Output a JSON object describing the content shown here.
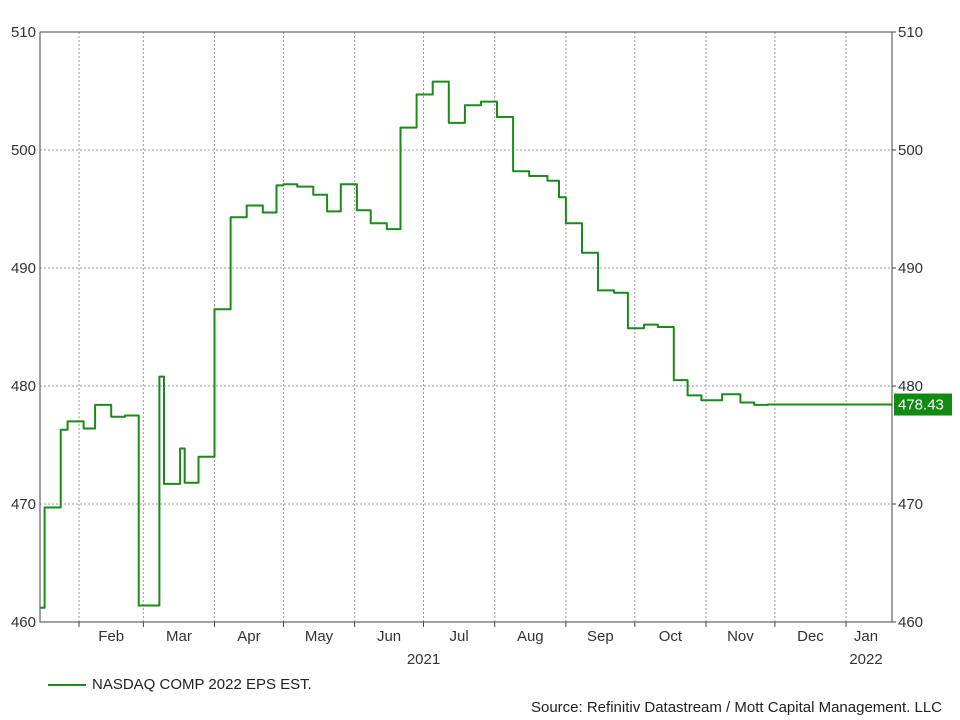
{
  "chart_data": {
    "type": "line",
    "title": "",
    "xlabel": "",
    "ylabel": "",
    "ylim": [
      460,
      510
    ],
    "y_ticks": [
      "460",
      "470",
      "480",
      "490",
      "500",
      "510"
    ],
    "x_ticks": [
      "Feb",
      "Mar",
      "Apr",
      "May",
      "Jun",
      "Jul",
      "Aug",
      "Sep",
      "Oct",
      "Nov",
      "Dec",
      "Jan"
    ],
    "year_labels": [
      "2021",
      "2022"
    ],
    "grid": true,
    "line_step": "post",
    "series": [
      {
        "name": "NASDAQ COMP 2022 EPS EST.",
        "color": "#1a8a1a",
        "last_value": "478.43",
        "x": [
          "2021-01-15",
          "2021-01-17",
          "2021-01-24",
          "2021-01-27",
          "2021-02-03",
          "2021-02-08",
          "2021-02-15",
          "2021-02-21",
          "2021-02-27",
          "2021-03-08",
          "2021-03-10",
          "2021-03-17",
          "2021-03-19",
          "2021-03-25",
          "2021-04-01",
          "2021-04-08",
          "2021-04-15",
          "2021-04-22",
          "2021-04-28",
          "2021-05-01",
          "2021-05-07",
          "2021-05-14",
          "2021-05-20",
          "2021-05-26",
          "2021-06-02",
          "2021-06-08",
          "2021-06-15",
          "2021-06-21",
          "2021-06-28",
          "2021-07-05",
          "2021-07-12",
          "2021-07-19",
          "2021-07-26",
          "2021-08-02",
          "2021-08-09",
          "2021-08-16",
          "2021-08-24",
          "2021-08-29",
          "2021-09-01",
          "2021-09-08",
          "2021-09-15",
          "2021-09-22",
          "2021-09-28",
          "2021-10-05",
          "2021-10-11",
          "2021-10-18",
          "2021-10-24",
          "2021-10-30",
          "2021-11-08",
          "2021-11-16",
          "2021-11-22",
          "2021-11-28",
          "2021-12-05",
          "2021-12-12",
          "2021-12-19",
          "2021-12-26",
          "2022-01-02",
          "2022-01-08",
          "2022-01-15",
          "2022-01-21"
        ],
        "values": [
          461.2,
          469.7,
          476.3,
          477.0,
          476.4,
          478.4,
          477.4,
          477.5,
          461.4,
          480.8,
          471.7,
          474.7,
          471.8,
          474.0,
          486.5,
          494.3,
          495.3,
          494.7,
          497.0,
          497.1,
          496.9,
          496.2,
          494.8,
          497.1,
          494.9,
          493.8,
          493.3,
          501.9,
          504.7,
          505.8,
          502.3,
          503.8,
          504.1,
          502.8,
          498.2,
          497.8,
          497.4,
          496.0,
          493.8,
          491.3,
          488.1,
          487.9,
          484.9,
          485.2,
          485.0,
          480.5,
          479.2,
          478.8,
          479.3,
          478.6,
          478.4,
          478.43,
          478.43,
          478.43,
          478.43,
          478.43,
          478.43,
          478.43,
          478.43,
          478.43
        ]
      }
    ]
  },
  "legend": {
    "label": "NASDAQ COMP 2022 EPS EST."
  },
  "source": "Source: Refinitiv Datastream / Mott Capital Management. LLC"
}
